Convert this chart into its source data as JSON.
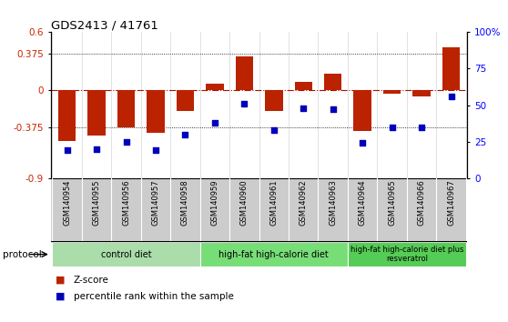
{
  "title": "GDS2413 / 41761",
  "samples": [
    "GSM140954",
    "GSM140955",
    "GSM140956",
    "GSM140957",
    "GSM140958",
    "GSM140959",
    "GSM140960",
    "GSM140961",
    "GSM140962",
    "GSM140963",
    "GSM140964",
    "GSM140965",
    "GSM140966",
    "GSM140967"
  ],
  "zscore": [
    -0.52,
    -0.46,
    -0.375,
    -0.44,
    -0.21,
    0.07,
    0.35,
    -0.21,
    0.09,
    0.17,
    -0.42,
    -0.03,
    -0.06,
    0.44
  ],
  "percentile": [
    19,
    20,
    25,
    19,
    30,
    38,
    51,
    33,
    48,
    47,
    24,
    35,
    35,
    56
  ],
  "ylim_left": [
    -0.9,
    0.6
  ],
  "ylim_right": [
    0,
    100
  ],
  "yticks_left": [
    -0.9,
    -0.375,
    0,
    0.375,
    0.6
  ],
  "ytick_labels_left": [
    "-0.9",
    "-0.375",
    "0",
    "0.375",
    "0.6"
  ],
  "yticks_right": [
    0,
    25,
    50,
    75,
    100
  ],
  "ytick_labels_right": [
    "0",
    "25",
    "50",
    "75",
    "100%"
  ],
  "bar_color": "#bb2200",
  "dot_color": "#0000bb",
  "bar_width": 0.6,
  "group_defs": [
    {
      "start": 0,
      "end": 4,
      "color": "#aaddaa",
      "label": "control diet"
    },
    {
      "start": 5,
      "end": 9,
      "color": "#77dd77",
      "label": "high-fat high-calorie diet"
    },
    {
      "start": 10,
      "end": 13,
      "color": "#55cc55",
      "label": "high-fat high-calorie diet plus\nresveratrol"
    }
  ],
  "protocol_label": "protocol",
  "legend_zscore": "Z-score",
  "legend_percentile": "percentile rank within the sample",
  "xtick_bg": "#cccccc",
  "separator_color": "#ffffff"
}
